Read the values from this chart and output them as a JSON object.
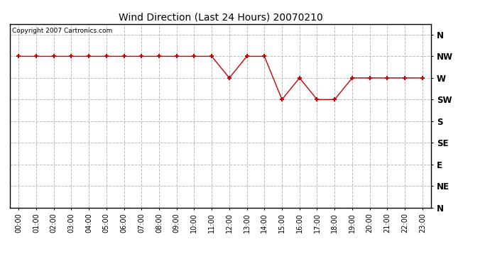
{
  "title": "Wind Direction (Last 24 Hours) 20070210",
  "copyright_text": "Copyright 2007 Cartronics.com",
  "background_color": "#ffffff",
  "plot_background_color": "#ffffff",
  "grid_color": "#bbbbbb",
  "line_color": "#cc0000",
  "marker_color": "#cc0000",
  "hours": [
    0,
    1,
    2,
    3,
    4,
    5,
    6,
    7,
    8,
    9,
    10,
    11,
    12,
    13,
    14,
    15,
    16,
    17,
    18,
    19,
    20,
    21,
    22,
    23
  ],
  "wind_values": [
    7,
    7,
    7,
    7,
    7,
    7,
    7,
    7,
    7,
    7,
    7,
    7,
    6,
    7,
    7,
    5,
    6,
    5,
    5,
    6,
    6,
    6,
    6,
    6
  ],
  "ytick_labels": [
    "N",
    "NE",
    "E",
    "SE",
    "S",
    "SW",
    "W",
    "NW",
    "N"
  ],
  "ytick_values": [
    0,
    1,
    2,
    3,
    4,
    5,
    6,
    7,
    8
  ],
  "ylim": [
    0.0,
    8.5
  ],
  "xlim": [
    -0.5,
    23.5
  ]
}
